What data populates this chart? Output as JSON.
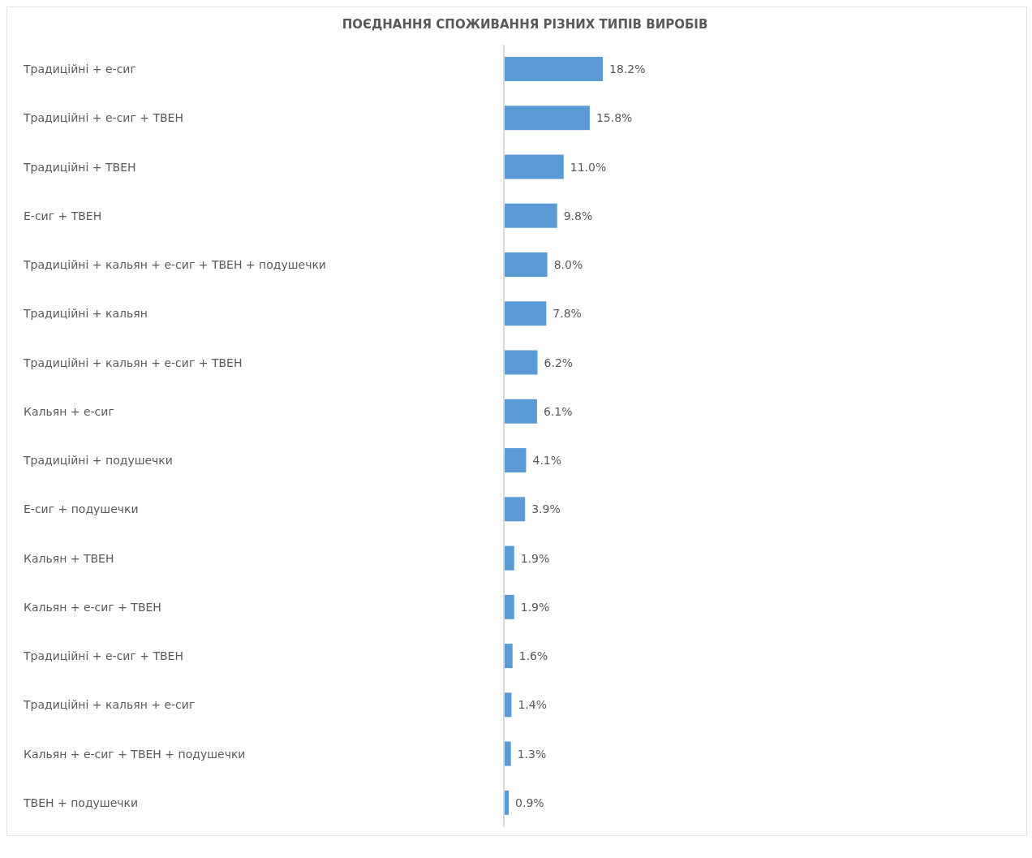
{
  "chart_data": {
    "type": "bar",
    "orientation": "horizontal",
    "title": "ПОЄДНАННЯ СПОЖИВАННЯ РІЗНИХ ТИПІВ ВИРОБІВ",
    "categories": [
      "Традиційні + е-сиг",
      "Традиційні + е-сиг + ТВЕН",
      "Традиційні + ТВЕН",
      "Е-сиг + ТВЕН",
      "Традиційні + кальян + е-сиг + ТВЕН + подушечки",
      "Традиційні + кальян",
      "Традиційні + кальян + е-сиг + ТВЕН",
      "Кальян + е-сиг",
      "Традиційні + подушечки",
      "Е-сиг + подушечки",
      "Кальян + ТВЕН",
      "Кальян + е-сиг + ТВЕН",
      "Традиційні + е-сиг + ТВЕН",
      "Традиційні + кальян + е-сиг",
      "Кальян + е-сиг + ТВЕН + подушечки",
      "ТВЕН + подушечки"
    ],
    "values": [
      18.2,
      15.8,
      11.0,
      9.8,
      8.0,
      7.8,
      6.2,
      6.1,
      4.1,
      3.9,
      1.9,
      1.9,
      1.6,
      1.4,
      1.3,
      0.9
    ],
    "value_labels": [
      "18.2%",
      "15.8%",
      "11.0%",
      "9.8%",
      "8.0%",
      "7.8%",
      "6.2%",
      "6.1%",
      "4.1%",
      "3.9%",
      "1.9%",
      "1.9%",
      "1.6%",
      "1.4%",
      "1.3%",
      "0.9%"
    ],
    "color": "#5b9bd5",
    "grid": false,
    "legend": false,
    "tick_labels": "y"
  }
}
